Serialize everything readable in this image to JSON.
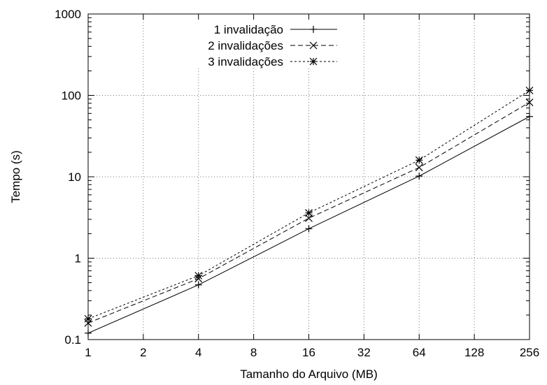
{
  "chart_data": {
    "type": "line",
    "title": "",
    "xlabel": "Tamanho do Arquivo (MB)",
    "ylabel": "Tempo (s)",
    "x_scale": "log2",
    "y_scale": "log10",
    "xlim": [
      1,
      256
    ],
    "ylim": [
      0.1,
      1000
    ],
    "x_ticks": [
      1,
      2,
      4,
      8,
      16,
      32,
      64,
      128,
      256
    ],
    "x_tick_labels": [
      "1",
      "2",
      "4",
      "8",
      "16",
      "32",
      "64",
      "128",
      "256"
    ],
    "y_ticks": [
      0.1,
      1,
      10,
      100,
      1000
    ],
    "y_tick_labels": [
      "0.1",
      "1",
      "10",
      "100",
      "1000"
    ],
    "grid": true,
    "legend_position": "top-center",
    "x": [
      1,
      4,
      16,
      64,
      256
    ],
    "series": [
      {
        "name": "1 invalidação",
        "values": [
          0.12,
          0.47,
          2.3,
          10.2,
          55
        ],
        "line_style": "solid",
        "marker": "plus"
      },
      {
        "name": "2 invalidações",
        "values": [
          0.16,
          0.56,
          3.1,
          13.0,
          82
        ],
        "line_style": "dashed",
        "marker": "cross"
      },
      {
        "name": "3 invalidações",
        "values": [
          0.18,
          0.61,
          3.6,
          16.0,
          115
        ],
        "line_style": "dotted",
        "marker": "asterisk"
      }
    ]
  }
}
